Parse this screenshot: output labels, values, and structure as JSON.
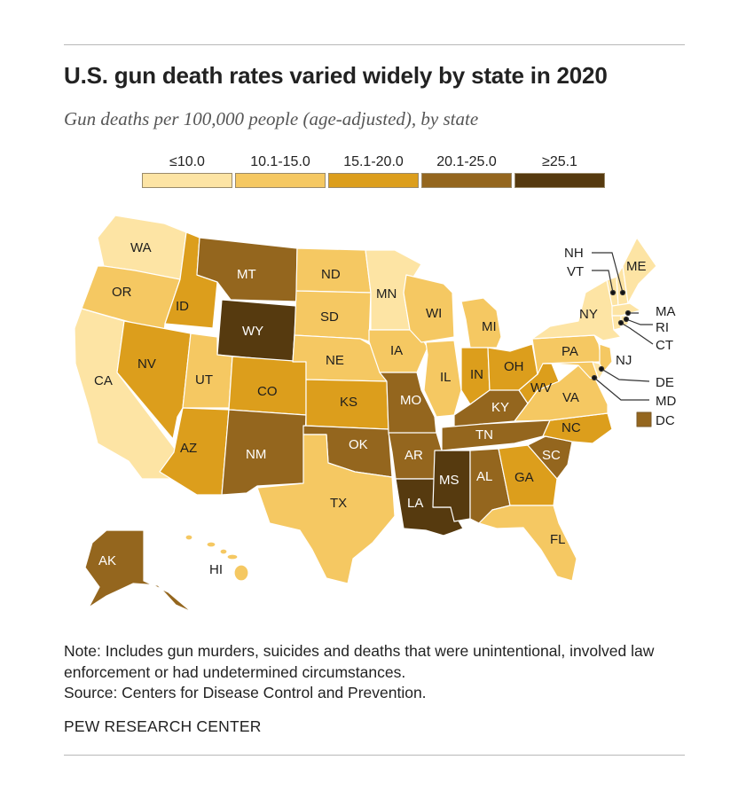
{
  "title": "U.S. gun death rates varied widely by state in 2020",
  "subtitle": "Gun deaths per 100,000 people (age-adjusted), by state",
  "legend": [
    {
      "label": "≤10.0",
      "color": "#fde4a4"
    },
    {
      "label": "10.1-15.0",
      "color": "#f5c862"
    },
    {
      "label": "15.1-20.0",
      "color": "#dc9e1c"
    },
    {
      "label": "20.1-25.0",
      "color": "#94661e"
    },
    {
      "label": "≥25.1",
      "color": "#563a0f"
    }
  ],
  "states": {
    "WA": "WA",
    "OR": "OR",
    "CA": "CA",
    "NV": "NV",
    "ID": "ID",
    "MT": "MT",
    "WY": "WY",
    "UT": "UT",
    "AZ": "AZ",
    "CO": "CO",
    "NM": "NM",
    "ND": "ND",
    "SD": "SD",
    "NE": "NE",
    "KS": "KS",
    "OK": "OK",
    "TX": "TX",
    "MN": "MN",
    "IA": "IA",
    "MO": "MO",
    "AR": "AR",
    "LA": "LA",
    "WI": "WI",
    "IL": "IL",
    "MS": "MS",
    "AL": "AL",
    "TN": "TN",
    "KY": "KY",
    "IN": "IN",
    "MI": "MI",
    "OH": "OH",
    "WV": "WV",
    "VA": "VA",
    "NC": "NC",
    "SC": "SC",
    "GA": "GA",
    "FL": "FL",
    "PA": "PA",
    "NY": "NY",
    "AK": "AK",
    "HI": "HI",
    "NH": "NH",
    "VT": "VT",
    "ME": "ME",
    "MA": "MA",
    "RI": "RI",
    "CT": "CT",
    "NJ": "NJ",
    "DE": "DE",
    "MD": "MD",
    "DC": "DC"
  },
  "note": "Note: Includes gun murders, suicides and deaths that were unintentional, involved law enforcement or had undetermined circumstances.",
  "source": "Source: Centers for Disease Control and Prevention.",
  "brand": "PEW RESEARCH CENTER"
}
